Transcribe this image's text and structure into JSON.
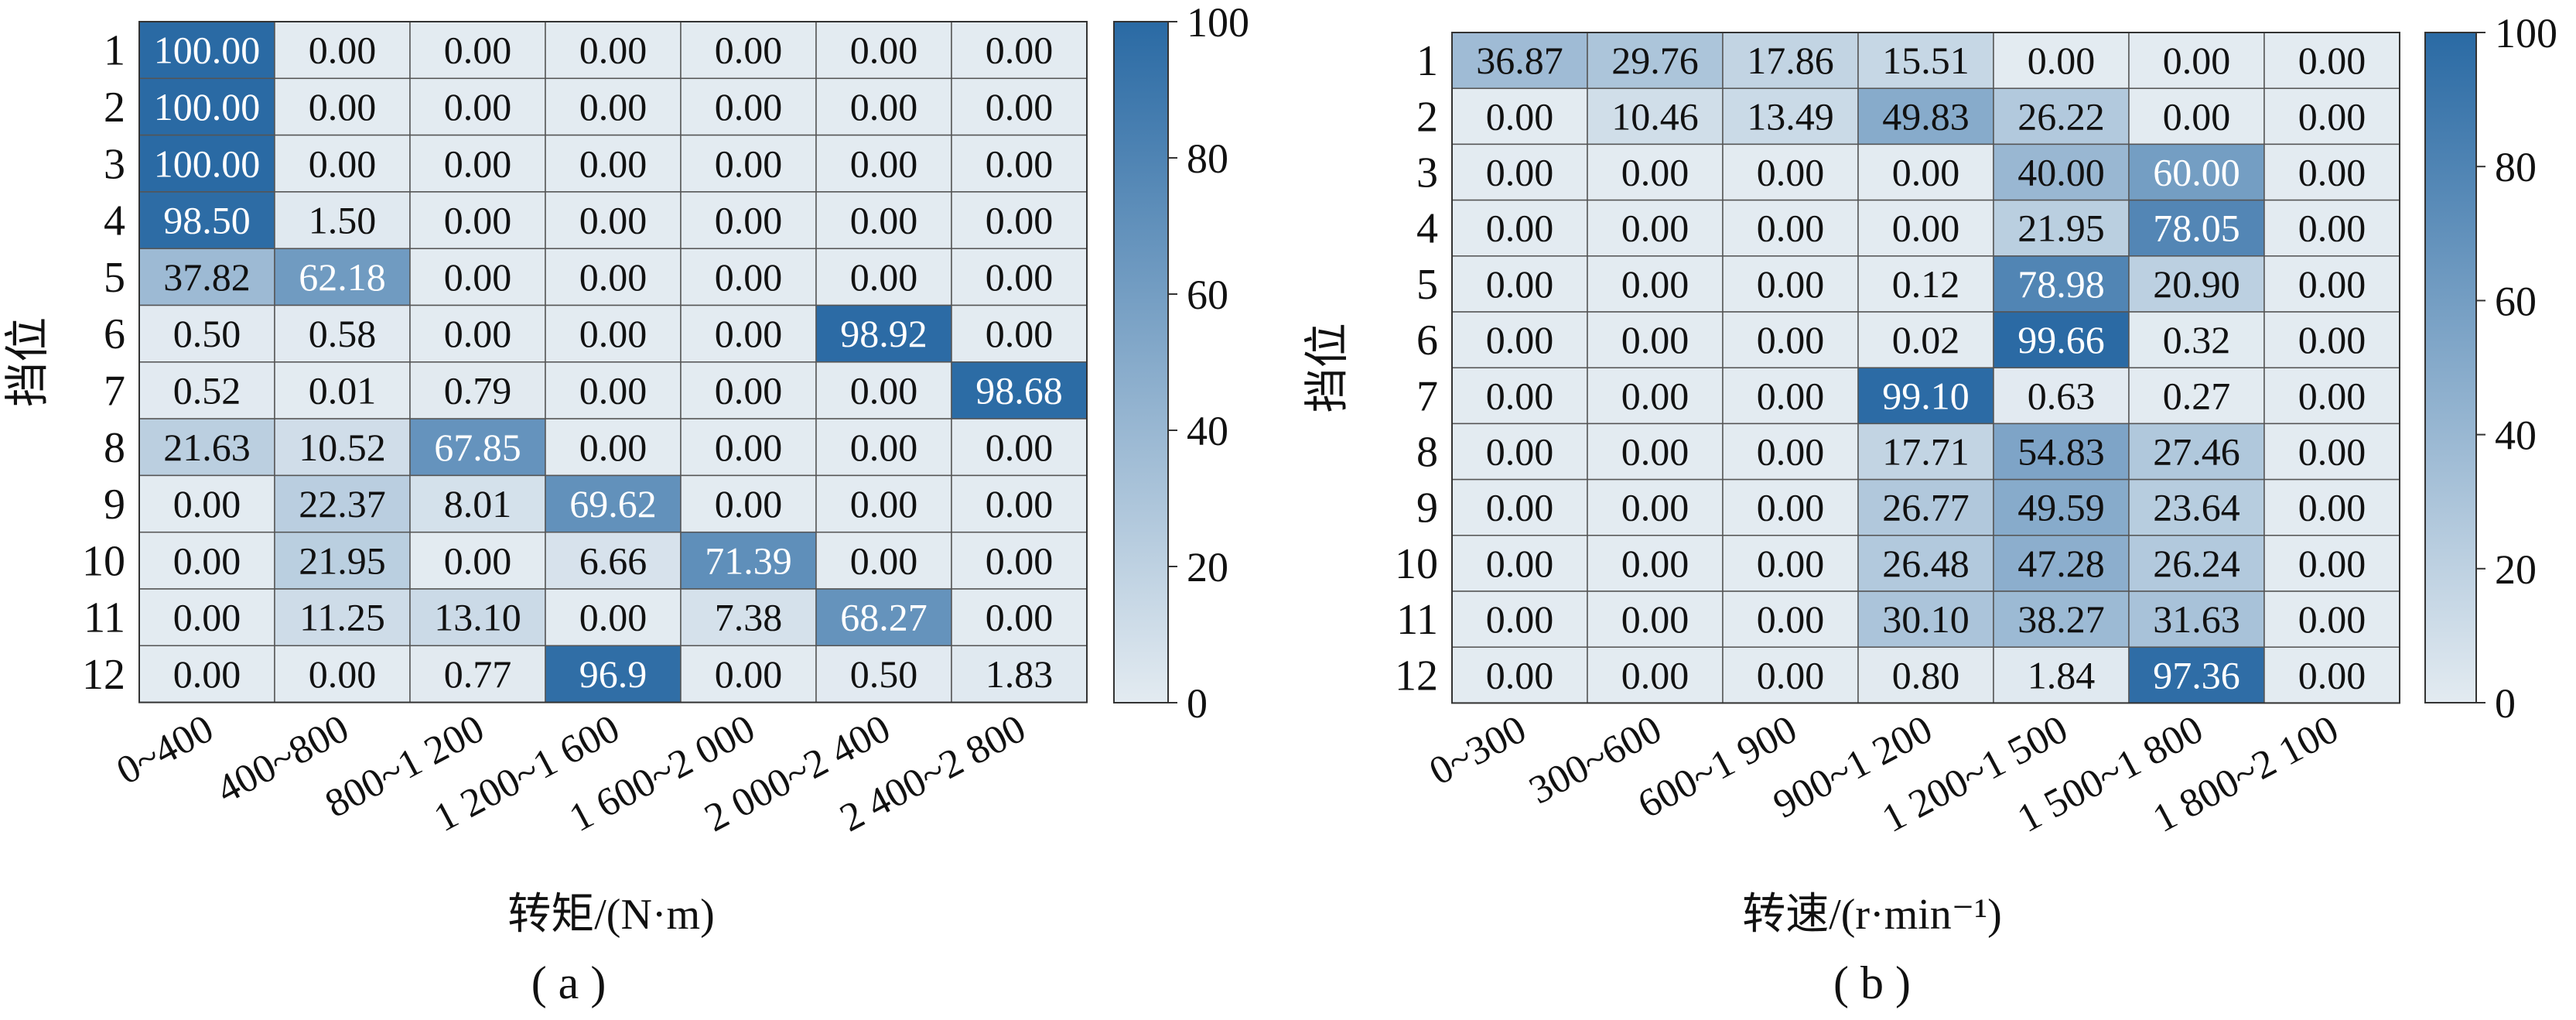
{
  "chart_data": [
    {
      "type": "heatmap",
      "panel_label": "( a )",
      "xlabel": "转矩/(N·m)",
      "ylabel": "挡位",
      "colorbar": {
        "min": 0,
        "max": 100,
        "ticks": [
          "0",
          "20",
          "40",
          "60",
          "80",
          "100"
        ]
      },
      "colors": {
        "low": "#e3ebf1",
        "high": "#2a6aa4"
      },
      "y_categories": [
        "1",
        "2",
        "3",
        "4",
        "5",
        "6",
        "7",
        "8",
        "9",
        "10",
        "11",
        "12"
      ],
      "x_categories": [
        "0~400",
        "400~800",
        "800~1 200",
        "1 200~1 600",
        "1 600~2 000",
        "2 000~2 400",
        "2 400~2 800"
      ],
      "cell_labels": [
        [
          "100.00",
          "0.00",
          "0.00",
          "0.00",
          "0.00",
          "0.00",
          "0.00"
        ],
        [
          "100.00",
          "0.00",
          "0.00",
          "0.00",
          "0.00",
          "0.00",
          "0.00"
        ],
        [
          "100.00",
          "0.00",
          "0.00",
          "0.00",
          "0.00",
          "0.00",
          "0.00"
        ],
        [
          "98.50",
          "1.50",
          "0.00",
          "0.00",
          "0.00",
          "0.00",
          "0.00"
        ],
        [
          "37.82",
          "62.18",
          "0.00",
          "0.00",
          "0.00",
          "0.00",
          "0.00"
        ],
        [
          "0.50",
          "0.58",
          "0.00",
          "0.00",
          "0.00",
          "98.92",
          "0.00"
        ],
        [
          "0.52",
          "0.01",
          "0.79",
          "0.00",
          "0.00",
          "0.00",
          "98.68"
        ],
        [
          "21.63",
          "10.52",
          "67.85",
          "0.00",
          "0.00",
          "0.00",
          "0.00"
        ],
        [
          "0.00",
          "22.37",
          "8.01",
          "69.62",
          "0.00",
          "0.00",
          "0.00"
        ],
        [
          "0.00",
          "21.95",
          "0.00",
          "6.66",
          "71.39",
          "0.00",
          "0.00"
        ],
        [
          "0.00",
          "11.25",
          "13.10",
          "0.00",
          "7.38",
          "68.27",
          "0.00"
        ],
        [
          "0.00",
          "0.00",
          "0.77",
          "96.9",
          "0.00",
          "0.50",
          "1.83"
        ]
      ]
    },
    {
      "type": "heatmap",
      "panel_label": "( b )",
      "xlabel": "转速/(r·min⁻¹)",
      "ylabel": "挡位",
      "colorbar": {
        "min": 0,
        "max": 100,
        "ticks": [
          "0",
          "20",
          "40",
          "60",
          "80",
          "100"
        ]
      },
      "colors": {
        "low": "#e3ebf1",
        "high": "#2a6aa4"
      },
      "y_categories": [
        "1",
        "2",
        "3",
        "4",
        "5",
        "6",
        "7",
        "8",
        "9",
        "10",
        "11",
        "12"
      ],
      "x_categories": [
        "0~300",
        "300~600",
        "600~1 900",
        "900~1 200",
        "1 200~1 500",
        "1 500~1 800",
        "1 800~2 100"
      ],
      "cell_labels": [
        [
          "36.87",
          "29.76",
          "17.86",
          "15.51",
          "0.00",
          "0.00",
          "0.00"
        ],
        [
          "0.00",
          "10.46",
          "13.49",
          "49.83",
          "26.22",
          "0.00",
          "0.00"
        ],
        [
          "0.00",
          "0.00",
          "0.00",
          "0.00",
          "40.00",
          "60.00",
          "0.00"
        ],
        [
          "0.00",
          "0.00",
          "0.00",
          "0.00",
          "21.95",
          "78.05",
          "0.00"
        ],
        [
          "0.00",
          "0.00",
          "0.00",
          "0.12",
          "78.98",
          "20.90",
          "0.00"
        ],
        [
          "0.00",
          "0.00",
          "0.00",
          "0.02",
          "99.66",
          "0.32",
          "0.00"
        ],
        [
          "0.00",
          "0.00",
          "0.00",
          "99.10",
          "0.63",
          "0.27",
          "0.00"
        ],
        [
          "0.00",
          "0.00",
          "0.00",
          "17.71",
          "54.83",
          "27.46",
          "0.00"
        ],
        [
          "0.00",
          "0.00",
          "0.00",
          "26.77",
          "49.59",
          "23.64",
          "0.00"
        ],
        [
          "0.00",
          "0.00",
          "0.00",
          "26.48",
          "47.28",
          "26.24",
          "0.00"
        ],
        [
          "0.00",
          "0.00",
          "0.00",
          "30.10",
          "38.27",
          "31.63",
          "0.00"
        ],
        [
          "0.00",
          "0.00",
          "0.00",
          "0.80",
          "1.84",
          "97.36",
          "0.00"
        ]
      ]
    }
  ]
}
